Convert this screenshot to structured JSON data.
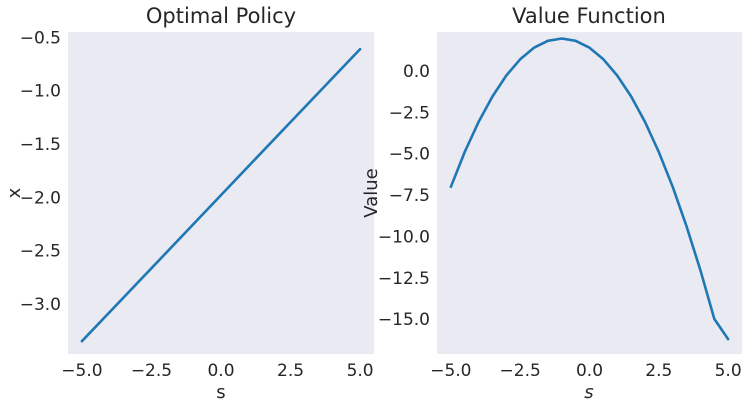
{
  "chart_data": [
    {
      "type": "line",
      "title": "Optimal Policy",
      "xlabel": "s",
      "ylabel": "x",
      "xlim": [
        -5.5,
        5.5
      ],
      "ylim": [
        -3.47,
        -0.45
      ],
      "xticks": [
        -5.0,
        -2.5,
        0.0,
        2.5,
        5.0
      ],
      "xtick_labels": [
        "−5.0",
        "−2.5",
        "0.0",
        "2.5",
        "5.0"
      ],
      "yticks": [
        -3.0,
        -2.5,
        -2.0,
        -1.5,
        -1.0,
        -0.5
      ],
      "ytick_labels": [
        "−3.0",
        "−2.5",
        "−2.0",
        "−1.5",
        "−1.0",
        "−0.5"
      ],
      "grid": false,
      "series": [
        {
          "color": "#1f77b4",
          "x": [
            -5.0,
            -2.5,
            0.0,
            2.5,
            5.0
          ],
          "y": [
            -3.35,
            -2.665,
            -1.98,
            -1.295,
            -0.61
          ]
        }
      ]
    },
    {
      "type": "line",
      "title": "Value Function",
      "xlabel": "s",
      "xlabel_italic": true,
      "ylabel": "Value",
      "xlim": [
        -5.5,
        5.5
      ],
      "ylim": [
        -17.1,
        2.35
      ],
      "xticks": [
        -5.0,
        -2.5,
        0.0,
        2.5,
        5.0
      ],
      "xtick_labels": [
        "−5.0",
        "−2.5",
        "0.0",
        "2.5",
        "5.0"
      ],
      "yticks": [
        0.0,
        -2.5,
        -5.0,
        -7.5,
        -10.0,
        -12.5,
        -15.0
      ],
      "ytick_labels": [
        "0.0",
        "−2.5",
        "−5.0",
        "−7.5",
        "−10.0",
        "−12.5",
        "−15.0"
      ],
      "grid": false,
      "series": [
        {
          "color": "#1f77b4",
          "x": [
            -5.0,
            -4.5,
            -4.0,
            -3.5,
            -3.0,
            -2.5,
            -2.0,
            -1.5,
            -1.0,
            -0.5,
            0.0,
            0.5,
            1.0,
            1.5,
            2.0,
            2.5,
            3.0,
            3.5,
            4.0,
            4.5,
            5.0
          ],
          "y": [
            -7.0,
            -4.9,
            -3.08,
            -1.54,
            -0.28,
            0.7,
            1.4,
            1.82,
            1.96,
            1.82,
            1.4,
            0.7,
            -0.28,
            -1.54,
            -3.08,
            -4.9,
            -7.0,
            -9.38,
            -12.04,
            -14.98,
            -16.2
          ]
        }
      ]
    }
  ]
}
